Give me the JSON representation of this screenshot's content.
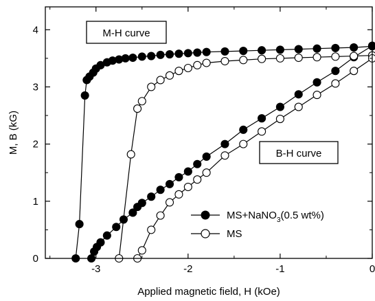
{
  "chart_data": {
    "type": "line",
    "title": "",
    "xlabel": "Applied magnetic field, H (kOe)",
    "ylabel": "M, B (kG)",
    "xlim": [
      -3.55,
      0
    ],
    "ylim": [
      0,
      4.4
    ],
    "xticks": [
      -3,
      -2,
      -1,
      0
    ],
    "yticks": [
      0,
      1,
      2,
      3,
      4
    ],
    "grid": false,
    "legend_position": "bottom-right",
    "annotations": [
      "M-H curve",
      "B-H curve"
    ],
    "legend": [
      {
        "prefix": "MS+NaNO",
        "sub": "3",
        "suffix": "(0.5 wt%)",
        "marker": "filled-circle"
      },
      {
        "prefix": "MS",
        "sub": "",
        "suffix": "",
        "marker": "open-circle"
      }
    ],
    "series": [
      {
        "name": "MS+NaNO3(0.5 wt%) M-H",
        "marker": "filled",
        "x": [
          -3.22,
          -3.18,
          -3.12,
          -3.1,
          -3.07,
          -3.03,
          -3.0,
          -2.95,
          -2.88,
          -2.82,
          -2.75,
          -2.68,
          -2.6,
          -2.5,
          -2.4,
          -2.3,
          -2.2,
          -2.1,
          -2.0,
          -1.9,
          -1.8,
          -1.6,
          -1.4,
          -1.2,
          -1.0,
          -0.8,
          -0.6,
          -0.4,
          -0.2,
          0.0
        ],
        "y": [
          0.0,
          0.6,
          2.85,
          3.12,
          3.18,
          3.25,
          3.32,
          3.38,
          3.43,
          3.46,
          3.48,
          3.5,
          3.51,
          3.53,
          3.54,
          3.56,
          3.57,
          3.58,
          3.59,
          3.6,
          3.61,
          3.62,
          3.63,
          3.64,
          3.65,
          3.66,
          3.67,
          3.68,
          3.69,
          3.71
        ]
      },
      {
        "name": "MS+NaNO3(0.5 wt%) B-H",
        "marker": "filled",
        "x": [
          -3.05,
          -3.02,
          -2.99,
          -2.95,
          -2.88,
          -2.78,
          -2.7,
          -2.6,
          -2.55,
          -2.5,
          -2.4,
          -2.3,
          -2.2,
          -2.1,
          -2.0,
          -1.9,
          -1.8,
          -1.6,
          -1.4,
          -1.2,
          -1.0,
          -0.8,
          -0.6,
          -0.4,
          -0.2,
          0.0
        ],
        "y": [
          0.0,
          0.12,
          0.2,
          0.28,
          0.4,
          0.55,
          0.68,
          0.8,
          0.9,
          0.97,
          1.08,
          1.2,
          1.3,
          1.42,
          1.52,
          1.65,
          1.78,
          2.0,
          2.25,
          2.45,
          2.65,
          2.87,
          3.08,
          3.28,
          3.52,
          3.72
        ]
      },
      {
        "name": "MS M-H",
        "marker": "open",
        "x": [
          -2.75,
          -2.62,
          -2.55,
          -2.5,
          -2.4,
          -2.3,
          -2.2,
          -2.1,
          -2.0,
          -1.9,
          -1.8,
          -1.6,
          -1.4,
          -1.2,
          -1.0,
          -0.8,
          -0.6,
          -0.4,
          -0.2,
          0.0
        ],
        "y": [
          0.0,
          1.82,
          2.62,
          2.75,
          3.0,
          3.12,
          3.2,
          3.28,
          3.33,
          3.38,
          3.42,
          3.45,
          3.47,
          3.49,
          3.5,
          3.51,
          3.52,
          3.53,
          3.54,
          3.55
        ]
      },
      {
        "name": "MS B-H",
        "marker": "open",
        "x": [
          -2.55,
          -2.5,
          -2.4,
          -2.3,
          -2.2,
          -2.1,
          -2.0,
          -1.9,
          -1.8,
          -1.6,
          -1.4,
          -1.2,
          -1.0,
          -0.8,
          -0.6,
          -0.4,
          -0.2,
          0.0
        ],
        "y": [
          0.0,
          0.14,
          0.5,
          0.75,
          0.98,
          1.12,
          1.25,
          1.38,
          1.5,
          1.8,
          2.0,
          2.22,
          2.44,
          2.65,
          2.86,
          3.06,
          3.28,
          3.5
        ]
      }
    ]
  }
}
